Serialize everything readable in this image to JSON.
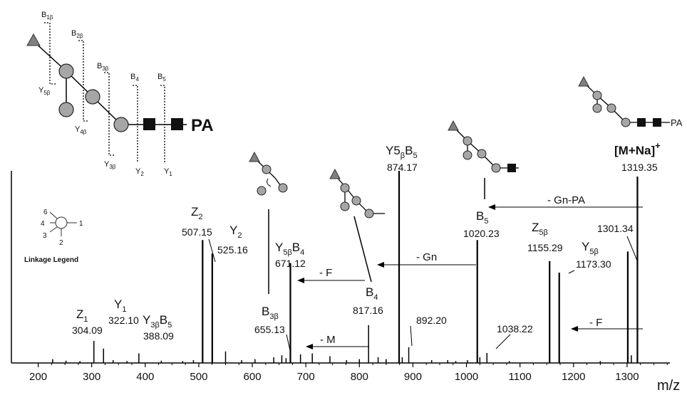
{
  "colors": {
    "peak": "#000000",
    "residue_fill": "#a6a6a6",
    "residue_stroke": "#222222",
    "square_fill": "#111111",
    "cleavage": "#000000"
  },
  "chart_data": {
    "type": "bar",
    "title": "",
    "xlabel": "m/z",
    "ylabel": "",
    "xlim": [
      150,
      1380
    ],
    "xticks": [
      200,
      300,
      400,
      500,
      600,
      700,
      800,
      900,
      1000,
      1100,
      1200,
      1300
    ],
    "yaxis_visible": true,
    "grid": false,
    "peaks": [
      {
        "mz": 227,
        "h": 0.02
      },
      {
        "mz": 252,
        "h": 0.012
      },
      {
        "mz": 278,
        "h": 0.01
      },
      {
        "mz": 304.09,
        "h": 0.115
      },
      {
        "mz": 322.1,
        "h": 0.075
      },
      {
        "mz": 340,
        "h": 0.015
      },
      {
        "mz": 366,
        "h": 0.01
      },
      {
        "mz": 388.09,
        "h": 0.05
      },
      {
        "mz": 430,
        "h": 0.012
      },
      {
        "mz": 470,
        "h": 0.01
      },
      {
        "mz": 490,
        "h": 0.015
      },
      {
        "mz": 507.15,
        "h": 0.64
      },
      {
        "mz": 525.16,
        "h": 0.57
      },
      {
        "mz": 550,
        "h": 0.06
      },
      {
        "mz": 580,
        "h": 0.015
      },
      {
        "mz": 605,
        "h": 0.02
      },
      {
        "mz": 640,
        "h": 0.03
      },
      {
        "mz": 655.13,
        "h": 0.04
      },
      {
        "mz": 663,
        "h": 0.025
      },
      {
        "mz": 671.12,
        "h": 0.52
      },
      {
        "mz": 690,
        "h": 0.045
      },
      {
        "mz": 712,
        "h": 0.05
      },
      {
        "mz": 745,
        "h": 0.035
      },
      {
        "mz": 776,
        "h": 0.015
      },
      {
        "mz": 800,
        "h": 0.02
      },
      {
        "mz": 817.16,
        "h": 0.197
      },
      {
        "mz": 835,
        "h": 0.03
      },
      {
        "mz": 850,
        "h": 0.02
      },
      {
        "mz": 874.17,
        "h": 1.0
      },
      {
        "mz": 880,
        "h": 0.03
      },
      {
        "mz": 892.2,
        "h": 0.082
      },
      {
        "mz": 935,
        "h": 0.015
      },
      {
        "mz": 965,
        "h": 0.015
      },
      {
        "mz": 980,
        "h": 0.01
      },
      {
        "mz": 1002,
        "h": 0.015
      },
      {
        "mz": 1020.23,
        "h": 0.64
      },
      {
        "mz": 1025,
        "h": 0.03
      },
      {
        "mz": 1038.22,
        "h": 0.052
      },
      {
        "mz": 1080,
        "h": 0.01
      },
      {
        "mz": 1155.29,
        "h": 0.53
      },
      {
        "mz": 1173.3,
        "h": 0.47
      },
      {
        "mz": 1250,
        "h": 0.01
      },
      {
        "mz": 1301.34,
        "h": 0.58
      },
      {
        "mz": 1308,
        "h": 0.04
      },
      {
        "mz": 1319.35,
        "h": 0.97
      }
    ],
    "annotations": [
      {
        "main": "Z",
        "sub": "1",
        "mz_value": "304.09"
      },
      {
        "main": "Y",
        "sub": "1",
        "mz_value": "322.10"
      },
      {
        "main": "Y",
        "sub": "3β",
        "main2": "B",
        "sub2": "5",
        "mz_value": "388.09"
      },
      {
        "main": "Z",
        "sub": "2",
        "mz_value": "507.15"
      },
      {
        "main": "Y",
        "sub": "2",
        "mz_value": "525.16"
      },
      {
        "main": "B",
        "sub": "3β",
        "mz_value": "655.13"
      },
      {
        "main": "Y",
        "sub": "5β",
        "main2": "B",
        "sub2": "4",
        "mz_value": "671.12"
      },
      {
        "main": "B",
        "sub": "4",
        "mz_value": "817.16"
      },
      {
        "main": "Y5",
        "sub": "β",
        "main2": "B",
        "sub2": "5",
        "mz_value": "874.17"
      },
      {
        "main": "",
        "sub": "",
        "mz_value": "892.20"
      },
      {
        "main": "B",
        "sub": "5",
        "mz_value": "1020.23"
      },
      {
        "main": "",
        "sub": "",
        "mz_value": "1038.22"
      },
      {
        "main": "Z",
        "sub": "5β",
        "mz_value": "1155.29"
      },
      {
        "main": "Y",
        "sub": "5β",
        "mz_value": "1173.30"
      },
      {
        "main": "",
        "sub": "",
        "mz_value": "1301.34"
      },
      {
        "main": "[M+Na]",
        "sup": "+",
        "mz_value": "1319.35"
      }
    ],
    "neutral_losses": [
      "- Gn-PA",
      "- Gn",
      "- F",
      "- M",
      "- F"
    ],
    "linkage_legend": {
      "title": "Linkage Legend",
      "positions": [
        "6",
        "4",
        "3",
        "2",
        "1"
      ]
    },
    "structure_labels": {
      "reducing_end": "PA",
      "cleavages": [
        "B",
        "1β",
        "B",
        "2β",
        "B",
        "3β",
        "B",
        "4",
        "B",
        "5",
        "Y",
        "5β",
        "Y",
        "4β",
        "Y",
        "3β",
        "Y",
        "2",
        "Y",
        "1"
      ]
    }
  }
}
